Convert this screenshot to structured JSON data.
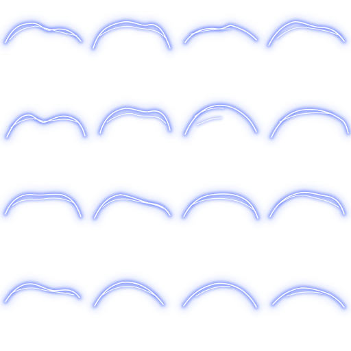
{
  "sprite_sheet": {
    "rows": 4,
    "columns": 4,
    "frame_count": 16,
    "glow_color": "#6f86ff",
    "halo_color": "#c8d3ff",
    "core_color": "#ffffff"
  }
}
